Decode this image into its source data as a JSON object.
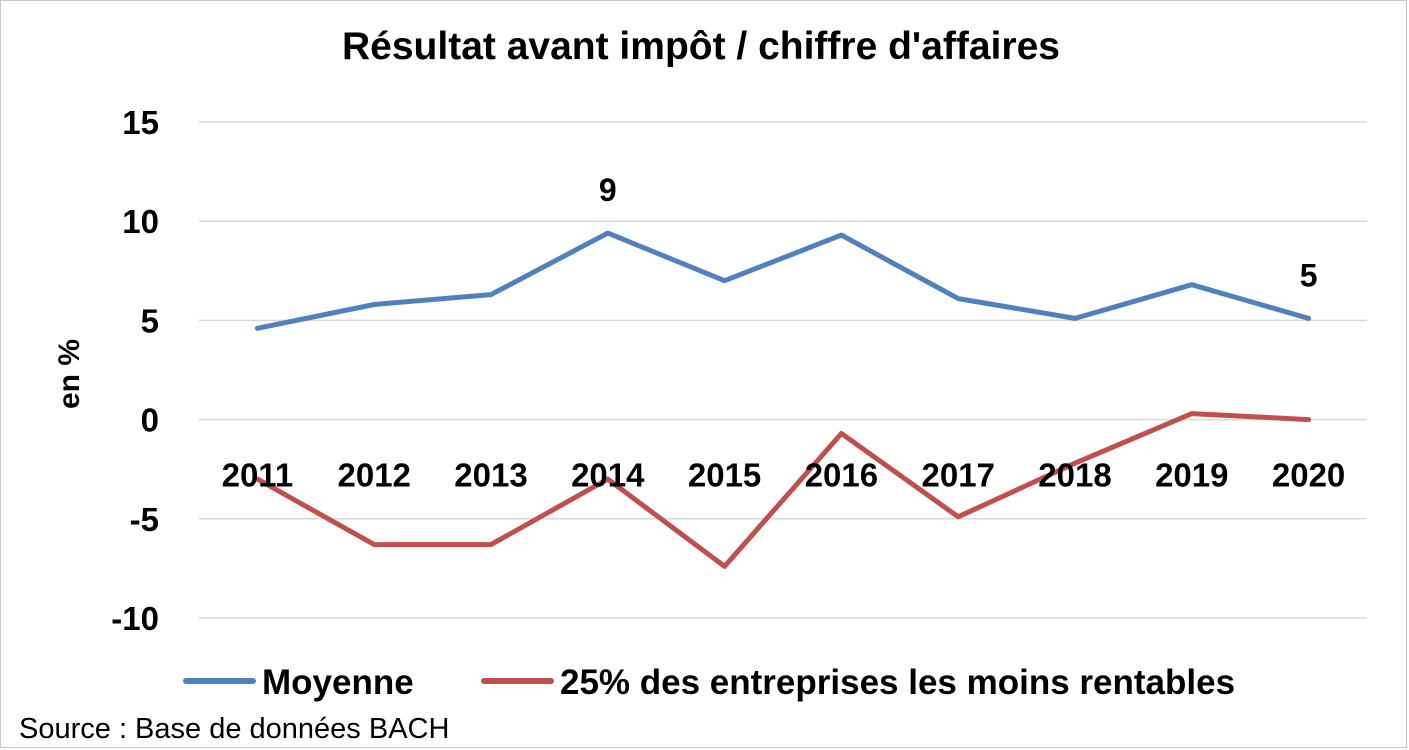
{
  "source_note": "Source : Base de données BACH",
  "colors": {
    "moyenne": "#4f81bd",
    "low25": "#c0504d",
    "grid": "#d9d9d9"
  },
  "chart_data": {
    "type": "line",
    "title": "Résultat avant impôt / chiffre d'affaires",
    "xlabel": "",
    "ylabel": "en %",
    "ylim": [
      -10,
      15
    ],
    "yticks": [
      15,
      10,
      5,
      0,
      -5,
      -10
    ],
    "grid": true,
    "legend_position": "bottom",
    "categories": [
      "2011",
      "2012",
      "2013",
      "2014",
      "2015",
      "2016",
      "2017",
      "2018",
      "2019",
      "2020"
    ],
    "series": [
      {
        "name": "Moyenne",
        "values": [
          4.6,
          5.8,
          6.3,
          9.4,
          7.0,
          9.3,
          6.1,
          5.1,
          6.8,
          5.1
        ]
      },
      {
        "name": "25% des entreprises les moins rentables",
        "values": [
          -3.0,
          -6.3,
          -6.3,
          -3.0,
          -7.4,
          -0.7,
          -4.9,
          -2.2,
          0.3,
          0.0
        ]
      }
    ],
    "data_labels": [
      {
        "series": 0,
        "index": 3,
        "text": "9"
      },
      {
        "series": 0,
        "index": 9,
        "text": "5"
      }
    ]
  }
}
